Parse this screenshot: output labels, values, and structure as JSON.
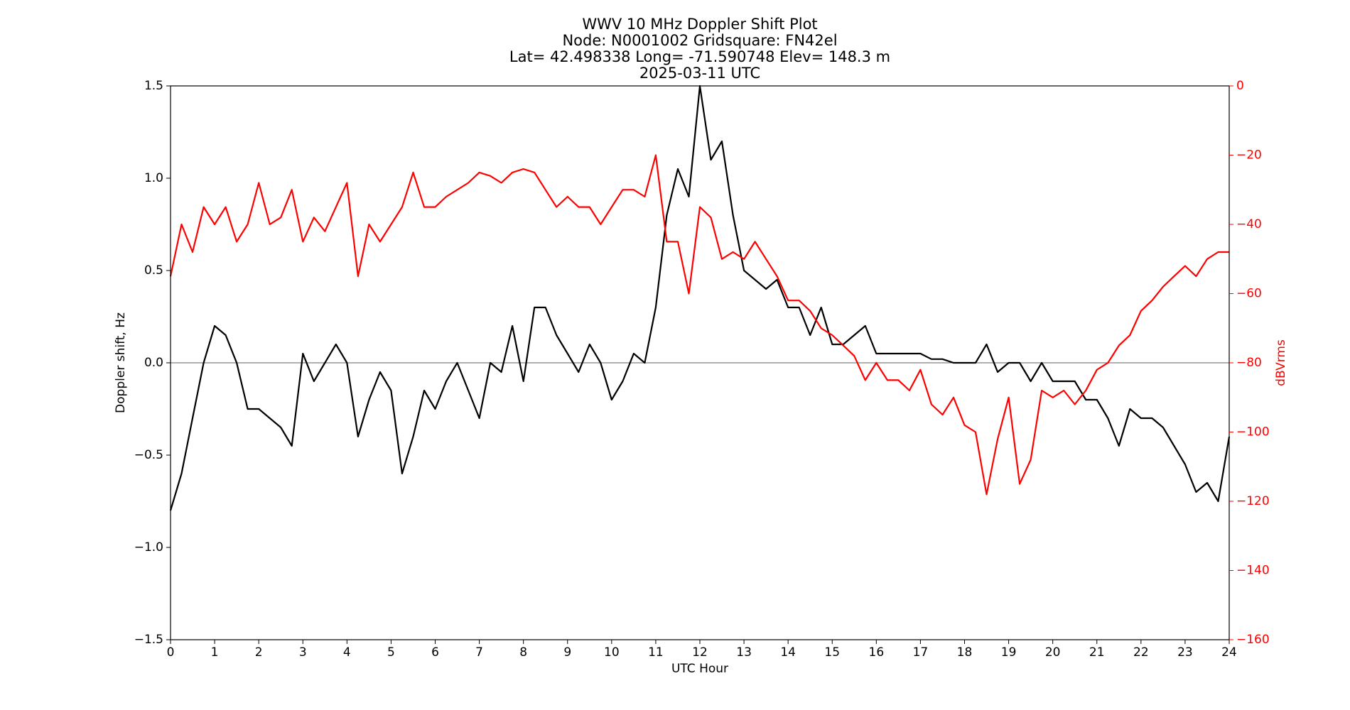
{
  "chart_data": {
    "type": "line",
    "title": [
      "WWV 10 MHz Doppler Shift Plot",
      "Node:  N0001002     Gridsquare:  FN42el",
      "Lat= 42.498338    Long= -71.590748    Elev= 148.3 m",
      "2025-03-11  UTC"
    ],
    "x_label": "UTC Hour",
    "y_label": "Doppler shift, Hz",
    "y2_label": "dBVrms",
    "y2_color": "#ff0000",
    "x": [
      0,
      0.25,
      0.5,
      0.75,
      1,
      1.25,
      1.5,
      1.75,
      2,
      2.25,
      2.5,
      2.75,
      3,
      3.25,
      3.5,
      3.75,
      4,
      4.25,
      4.5,
      4.75,
      5,
      5.25,
      5.5,
      5.75,
      6,
      6.25,
      6.5,
      6.75,
      7,
      7.25,
      7.5,
      7.75,
      8,
      8.25,
      8.5,
      8.75,
      9,
      9.25,
      9.5,
      9.75,
      10,
      10.25,
      10.5,
      10.75,
      11,
      11.25,
      11.5,
      11.75,
      12,
      12.25,
      12.5,
      12.75,
      13,
      13.25,
      13.5,
      13.75,
      14,
      14.25,
      14.5,
      14.75,
      15,
      15.25,
      15.5,
      15.75,
      16,
      16.25,
      16.5,
      16.75,
      17,
      17.25,
      17.5,
      17.75,
      18,
      18.25,
      18.5,
      18.75,
      19,
      19.25,
      19.5,
      19.75,
      20,
      20.25,
      20.5,
      20.75,
      21,
      21.25,
      21.5,
      21.75,
      22,
      22.25,
      22.5,
      22.75,
      23,
      23.25,
      23.5,
      23.75,
      24
    ],
    "series": [
      {
        "name": "Doppler shift, Hz",
        "color": "#000000",
        "values": [
          -0.8,
          -0.6,
          -0.3,
          0.0,
          0.2,
          0.15,
          0.0,
          -0.25,
          -0.25,
          -0.3,
          -0.35,
          -0.45,
          0.05,
          -0.1,
          0.0,
          0.1,
          0.0,
          -0.4,
          -0.2,
          -0.05,
          -0.15,
          -0.6,
          -0.4,
          -0.15,
          -0.25,
          -0.1,
          0.0,
          -0.15,
          -0.3,
          0.0,
          -0.05,
          0.2,
          -0.1,
          0.3,
          0.3,
          0.15,
          0.05,
          -0.05,
          0.1,
          0.0,
          -0.2,
          -0.1,
          0.05,
          0.0,
          0.3,
          0.8,
          1.05,
          0.9,
          1.5,
          1.1,
          1.2,
          0.8,
          0.5,
          0.45,
          0.4,
          0.45,
          0.3,
          0.3,
          0.15,
          0.3,
          0.1,
          0.1,
          0.15,
          0.2,
          0.05,
          0.05,
          0.05,
          0.05,
          0.05,
          0.02,
          0.02,
          0.0,
          0.0,
          0.0,
          0.1,
          -0.05,
          0.0,
          0.0,
          -0.1,
          0.0,
          -0.1,
          -0.1,
          -0.1,
          -0.2,
          -0.2,
          -0.3,
          -0.45,
          -0.25,
          -0.3,
          -0.3,
          -0.35,
          -0.45,
          -0.55,
          -0.7,
          -0.65,
          -0.75,
          -0.4
        ]
      },
      {
        "name": "dBVrms",
        "color": "#ff0000",
        "axis": "y2",
        "values": [
          -55,
          -40,
          -48,
          -35,
          -40,
          -35,
          -45,
          -40,
          -28,
          -40,
          -38,
          -30,
          -45,
          -38,
          -42,
          -35,
          -28,
          -55,
          -40,
          -45,
          -40,
          -35,
          -25,
          -35,
          -35,
          -32,
          -30,
          -28,
          -25,
          -26,
          -28,
          -25,
          -24,
          -25,
          -30,
          -35,
          -32,
          -35,
          -35,
          -40,
          -35,
          -30,
          -30,
          -32,
          -20,
          -45,
          -45,
          -60,
          -35,
          -38,
          -50,
          -48,
          -50,
          -45,
          -50,
          -55,
          -62,
          -62,
          -65,
          -70,
          -72,
          -75,
          -78,
          -85,
          -80,
          -85,
          -85,
          -88,
          -82,
          -92,
          -95,
          -90,
          -98,
          -100,
          -118,
          -102,
          -90,
          -115,
          -108,
          -88,
          -90,
          -88,
          -92,
          -88,
          -82,
          -80,
          -75,
          -72,
          -65,
          -62,
          -58,
          -55,
          -52,
          -55,
          -50,
          -48,
          -48
        ]
      }
    ],
    "xlim": [
      0,
      24
    ],
    "xticks": [
      0,
      1,
      2,
      3,
      4,
      5,
      6,
      7,
      8,
      9,
      10,
      11,
      12,
      13,
      14,
      15,
      16,
      17,
      18,
      19,
      20,
      21,
      22,
      23,
      24
    ],
    "ylim": [
      -1.5,
      1.5
    ],
    "yticks": [
      {
        "value": -1.5,
        "label": "−1.5"
      },
      {
        "value": -1.0,
        "label": "−1.0"
      },
      {
        "value": -0.5,
        "label": "−0.5"
      },
      {
        "value": 0,
        "label": "0.0"
      },
      0.5,
      {
        "value": 1.0,
        "label": "1.0"
      },
      1.5
    ],
    "y2lim": [
      -160,
      0
    ],
    "y2ticks": [
      {
        "value": -160,
        "label": "−160"
      },
      {
        "value": -140,
        "label": "−140"
      },
      {
        "value": -120,
        "label": "−120"
      },
      {
        "value": -100,
        "label": "−100"
      },
      {
        "value": -80,
        "label": "−80"
      },
      {
        "value": -60,
        "label": "−60"
      },
      {
        "value": -40,
        "label": "−40"
      },
      {
        "value": -20,
        "label": "−20"
      },
      0
    ],
    "zero_line": true,
    "grid": false
  }
}
